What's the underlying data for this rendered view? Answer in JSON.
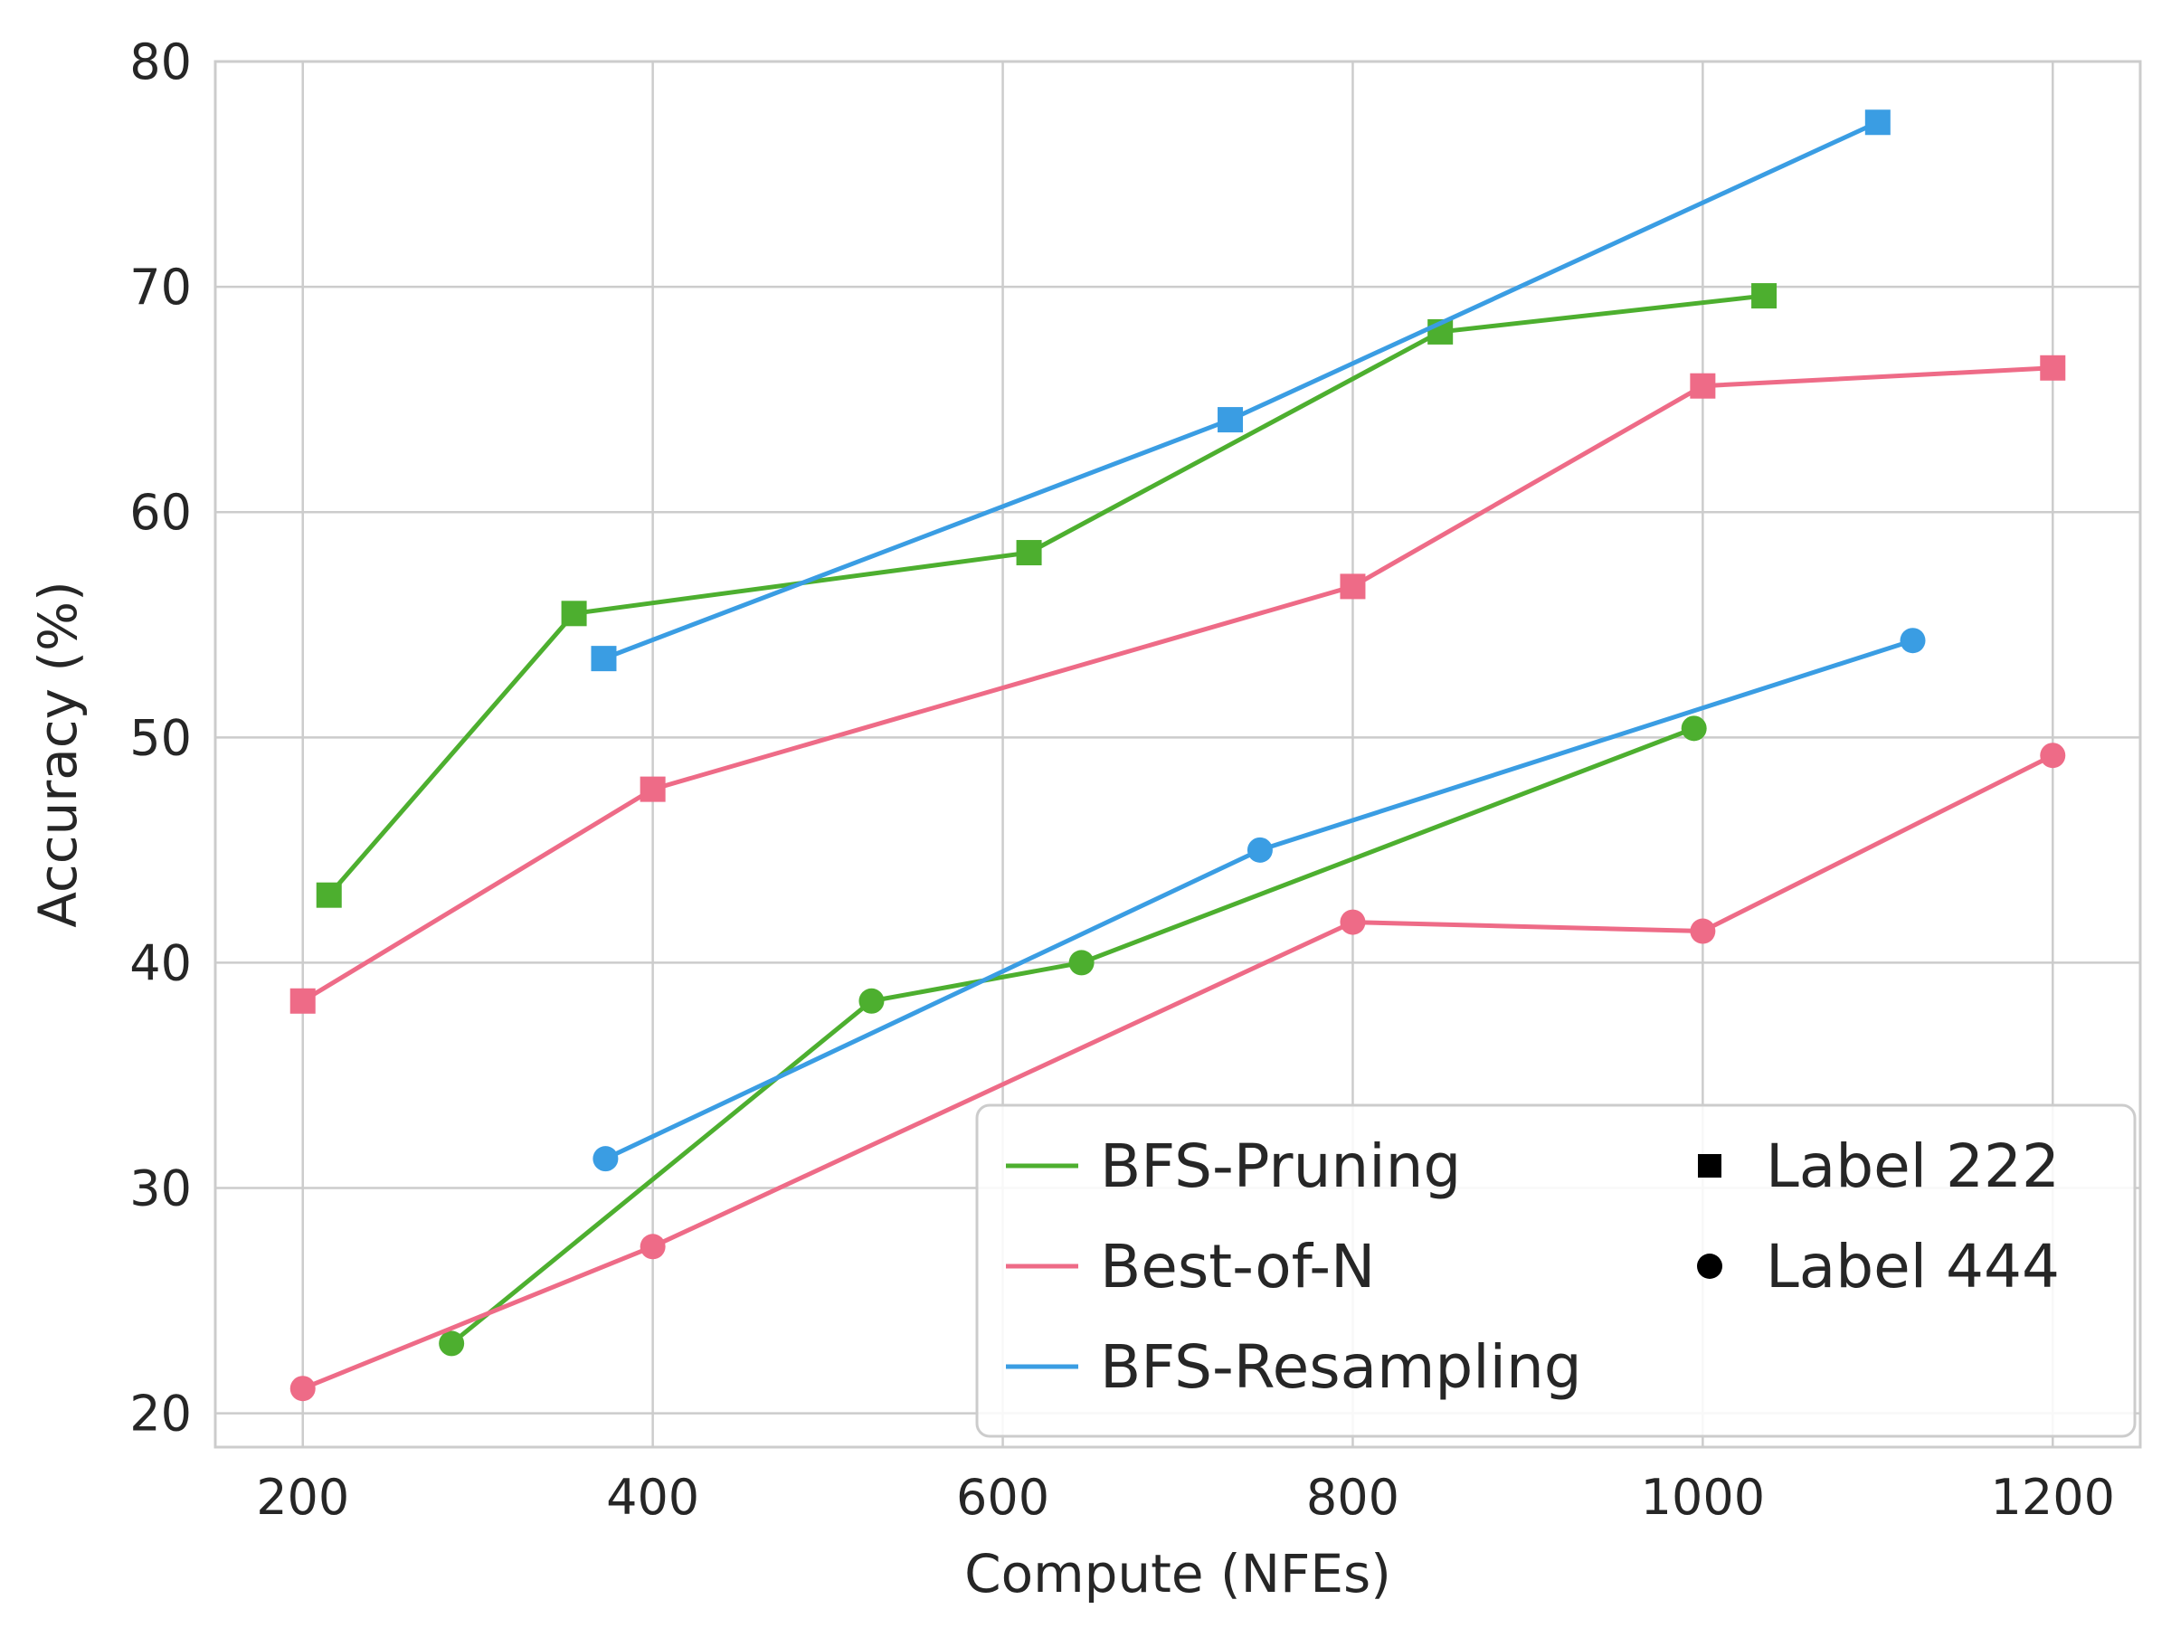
{
  "chart_data": {
    "type": "line",
    "title": "",
    "xlabel": "Compute (NFEs)",
    "ylabel": "Accuracy (%)",
    "xlim": [
      150,
      1250
    ],
    "ylim": [
      18.5,
      80
    ],
    "xticks": [
      200,
      400,
      600,
      800,
      1000,
      1200
    ],
    "yticks": [
      20,
      30,
      40,
      50,
      60,
      70,
      80
    ],
    "grid": true,
    "legend_position": "bottom-right",
    "series": [
      {
        "name": "BFS-Pruning",
        "marker": "square",
        "color": "#4daf2f",
        "x": [
          215,
          355,
          615,
          850,
          1035
        ],
        "y": [
          43.0,
          55.5,
          58.2,
          68.0,
          69.6
        ]
      },
      {
        "name": "Best-of-N",
        "marker": "square",
        "color": "#ee6b87",
        "x": [
          200,
          400,
          800,
          1000,
          1200
        ],
        "y": [
          38.3,
          47.7,
          56.7,
          65.6,
          66.4
        ]
      },
      {
        "name": "BFS-Resampling",
        "marker": "square",
        "color": "#3a9de3",
        "x": [
          372,
          730,
          1100
        ],
        "y": [
          53.5,
          64.1,
          77.3
        ]
      },
      {
        "name": "BFS-Pruning",
        "marker": "circle",
        "color": "#4daf2f",
        "x": [
          285,
          525,
          645,
          995
        ],
        "y": [
          23.1,
          38.3,
          40.0,
          50.4
        ]
      },
      {
        "name": "Best-of-N",
        "marker": "circle",
        "color": "#ee6b87",
        "x": [
          200,
          400,
          800,
          1000,
          1200
        ],
        "y": [
          21.1,
          27.4,
          41.8,
          41.4,
          49.2
        ]
      },
      {
        "name": "BFS-Resampling",
        "marker": "circle",
        "color": "#3a9de3",
        "x": [
          373,
          747,
          1120
        ],
        "y": [
          31.3,
          45.0,
          54.3
        ]
      }
    ],
    "legend": {
      "lines": [
        {
          "label": "BFS-Pruning",
          "color": "#4daf2f"
        },
        {
          "label": "Best-of-N",
          "color": "#ee6b87"
        },
        {
          "label": "BFS-Resampling",
          "color": "#3a9de3"
        }
      ],
      "markers": [
        {
          "label": "Label 222",
          "marker": "square"
        },
        {
          "label": "Label 444",
          "marker": "circle"
        }
      ]
    }
  }
}
